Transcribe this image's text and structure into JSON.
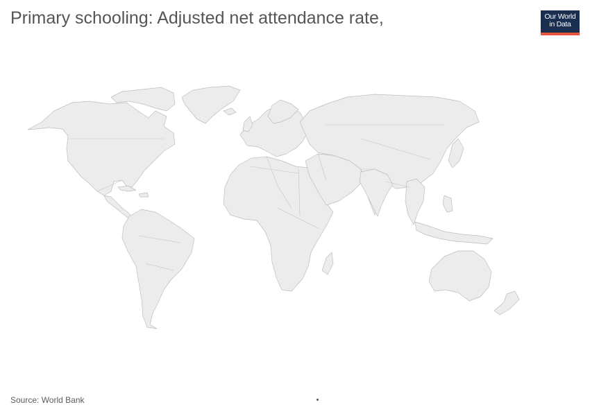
{
  "header": {
    "title": "Primary schooling: Adjusted net attendance rate,"
  },
  "logo": {
    "line1": "Our World",
    "line2": "in Data",
    "bg_color": "#1a2e4f",
    "accent_color": "#e8553d"
  },
  "map": {
    "land_color": "#ececec",
    "border_color": "#bdbdbd"
  },
  "footer": {
    "source": "Source: World Bank"
  }
}
